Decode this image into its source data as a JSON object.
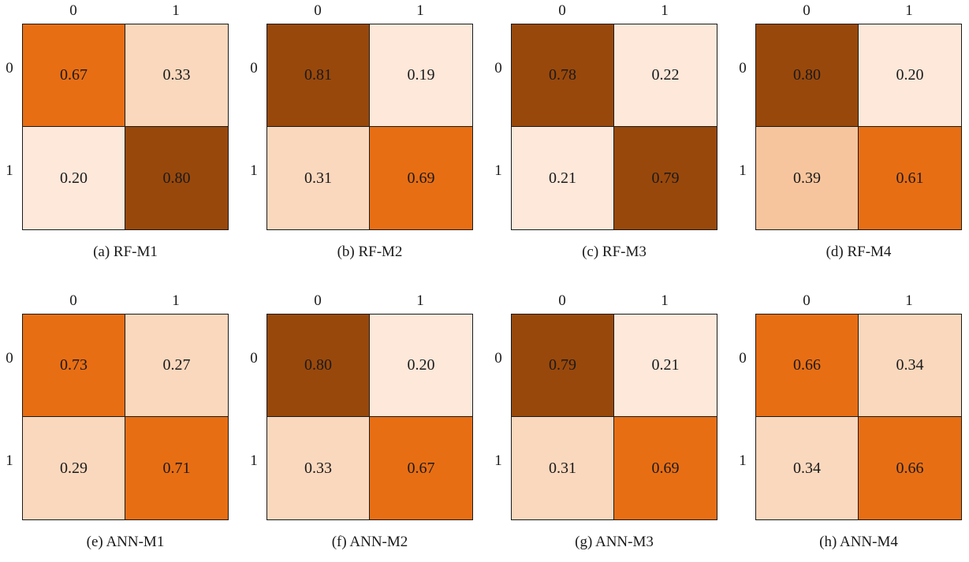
{
  "chart_data": [
    {
      "type": "heatmap",
      "caption": "(a) RF-M1",
      "x_labels": [
        "0",
        "1"
      ],
      "y_labels": [
        "0",
        "1"
      ],
      "values": [
        [
          "0.67",
          "0.33"
        ],
        [
          "0.20",
          "0.80"
        ]
      ]
    },
    {
      "type": "heatmap",
      "caption": "(b) RF-M2",
      "x_labels": [
        "0",
        "1"
      ],
      "y_labels": [
        "0",
        "1"
      ],
      "values": [
        [
          "0.81",
          "0.19"
        ],
        [
          "0.31",
          "0.69"
        ]
      ]
    },
    {
      "type": "heatmap",
      "caption": "(c) RF-M3",
      "x_labels": [
        "0",
        "1"
      ],
      "y_labels": [
        "0",
        "1"
      ],
      "values": [
        [
          "0.78",
          "0.22"
        ],
        [
          "0.21",
          "0.79"
        ]
      ]
    },
    {
      "type": "heatmap",
      "caption": "(d) RF-M4",
      "x_labels": [
        "0",
        "1"
      ],
      "y_labels": [
        "0",
        "1"
      ],
      "values": [
        [
          "0.80",
          "0.20"
        ],
        [
          "0.39",
          "0.61"
        ]
      ]
    },
    {
      "type": "heatmap",
      "caption": "(e) ANN-M1",
      "x_labels": [
        "0",
        "1"
      ],
      "y_labels": [
        "0",
        "1"
      ],
      "values": [
        [
          "0.73",
          "0.27"
        ],
        [
          "0.29",
          "0.71"
        ]
      ]
    },
    {
      "type": "heatmap",
      "caption": "(f) ANN-M2",
      "x_labels": [
        "0",
        "1"
      ],
      "y_labels": [
        "0",
        "1"
      ],
      "values": [
        [
          "0.80",
          "0.20"
        ],
        [
          "0.33",
          "0.67"
        ]
      ]
    },
    {
      "type": "heatmap",
      "caption": "(g) ANN-M3",
      "x_labels": [
        "0",
        "1"
      ],
      "y_labels": [
        "0",
        "1"
      ],
      "values": [
        [
          "0.79",
          "0.21"
        ],
        [
          "0.31",
          "0.69"
        ]
      ]
    },
    {
      "type": "heatmap",
      "caption": "(h) ANN-M4",
      "x_labels": [
        "0",
        "1"
      ],
      "y_labels": [
        "0",
        "1"
      ],
      "values": [
        [
          "0.66",
          "0.34"
        ],
        [
          "0.34",
          "0.66"
        ]
      ]
    }
  ],
  "colors": {
    "very_light": "#fde8da",
    "light": "#fad8bd",
    "medium_light": "#f7c59d",
    "orange": "#e86e14",
    "dark_brown": "#99480b",
    "border": "#1a1a1a"
  }
}
